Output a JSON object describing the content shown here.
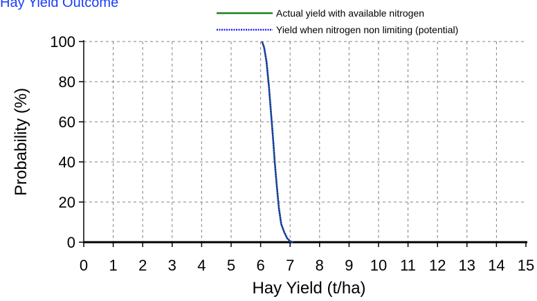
{
  "title": "Hay Yield Outcome",
  "colors": {
    "actual": "#1a7f1a",
    "potential": "#1a1aff",
    "grid": "#808080",
    "title": "#1a3cff"
  },
  "chart_data": {
    "type": "line",
    "title": "Hay Yield Outcome",
    "xlabel": "Hay Yield (t/ha)",
    "ylabel": "Probability (%)",
    "xlim": [
      0,
      15
    ],
    "ylim": [
      0,
      100
    ],
    "xticks": [
      "0",
      "1",
      "2",
      "3",
      "4",
      "5",
      "6",
      "7",
      "8",
      "9",
      "10",
      "11",
      "12",
      "13",
      "14",
      "15"
    ],
    "yticks": [
      "0",
      "20",
      "40",
      "60",
      "80",
      "100"
    ],
    "grid": true,
    "legend_position": "top-right",
    "series": [
      {
        "name": "Actual yield with available nitrogen",
        "style": "solid",
        "x": [
          6.05,
          6.12,
          6.2,
          6.28,
          6.35,
          6.42,
          6.48,
          6.55,
          6.62,
          6.7,
          6.8,
          6.9,
          7.0,
          7.1
        ],
        "y": [
          100,
          97,
          90,
          78,
          65,
          52,
          40,
          28,
          17,
          9,
          5,
          2,
          0.5,
          0
        ]
      },
      {
        "name": "Yield when nitrogen non limiting (potential)",
        "style": "dotted",
        "x": [
          6.05,
          6.12,
          6.2,
          6.28,
          6.35,
          6.42,
          6.48,
          6.55,
          6.62,
          6.7,
          6.8,
          6.9,
          7.0,
          7.1
        ],
        "y": [
          100,
          97,
          90,
          78,
          65,
          52,
          40,
          28,
          17,
          9,
          5,
          2,
          0.5,
          0
        ]
      }
    ]
  }
}
